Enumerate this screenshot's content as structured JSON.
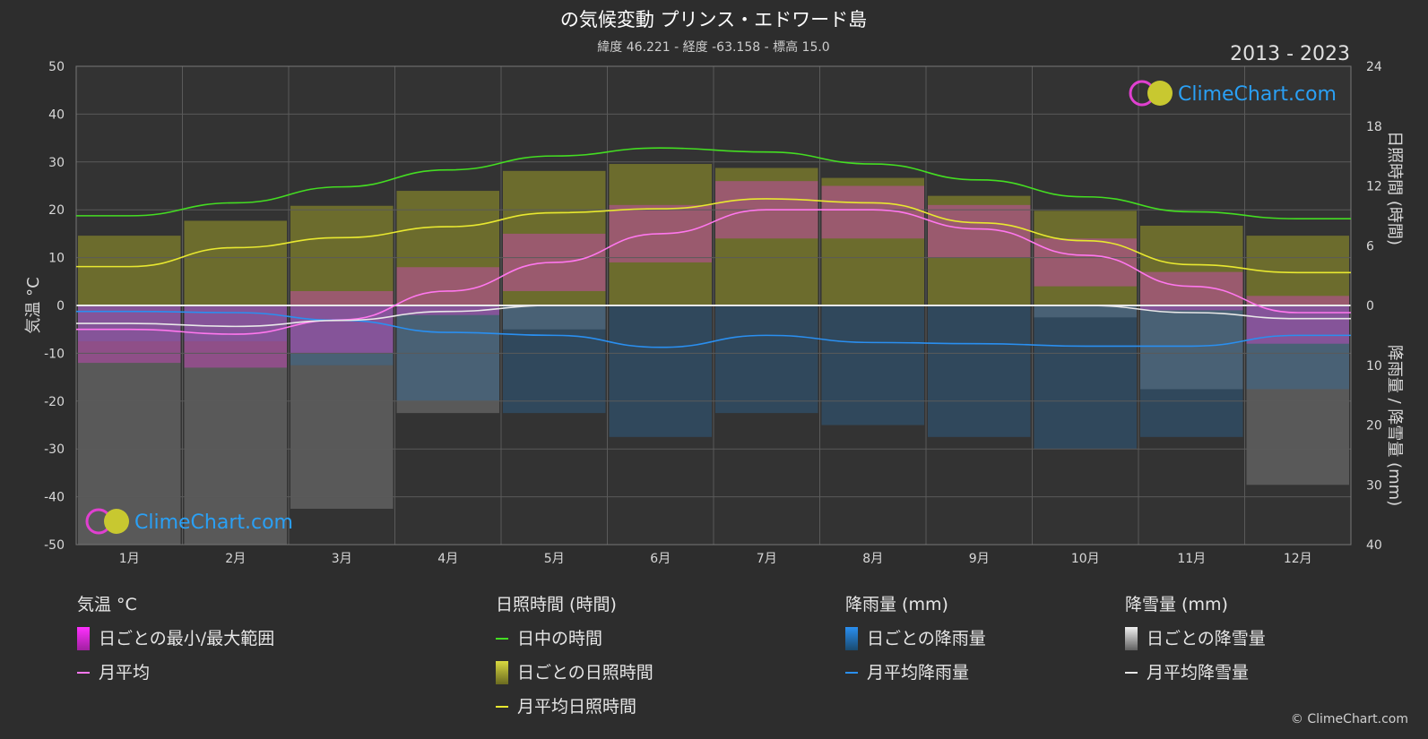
{
  "header": {
    "title": "の気候変動 プリンス・エドワード島",
    "subtitle": "緯度 46.221 - 経度 -63.158 - 標高 15.0",
    "years": "2013 - 2023"
  },
  "brand": {
    "logo_text": "ClimeChart.com",
    "copyright": "© ClimeChart.com"
  },
  "axes": {
    "left_label": "気温 °C",
    "right_top_label": "日照時間 (時間)",
    "right_bottom_label": "降雨量 / 降雪量 (mm)"
  },
  "legend": {
    "temperature": {
      "heading": "気温 °C",
      "range_label": "日ごとの最小/最大範囲",
      "avg_label": "月平均"
    },
    "sunshine": {
      "heading": "日照時間 (時間)",
      "daylight_label": "日中の時間",
      "daily_label": "日ごとの日照時間",
      "avg_label": "月平均日照時間"
    },
    "rain": {
      "heading": "降雨量 (mm)",
      "daily_label": "日ごとの降雨量",
      "avg_label": "月平均降雨量"
    },
    "snow": {
      "heading": "降雪量 (mm)",
      "daily_label": "日ごとの降雪量",
      "avg_label": "月平均降雪量"
    }
  },
  "colors": {
    "background": "#2d2d2d",
    "plot_background": "#333333",
    "daylight": "#44dd22",
    "sunshine_avg": "#e8e830",
    "temp_avg": "#ff77ee",
    "rain_avg": "#2a8ff0",
    "snow_avg": "#e8e8e8",
    "temp_range": "#e040d0",
    "sunshine_bar": "#9a9a28",
    "rain_bar": "#2a6fa8",
    "snow_bar": "#888888",
    "logo_blue": "#2aa0f5"
  },
  "chart_data": {
    "type": "line",
    "months": [
      "1月",
      "2月",
      "3月",
      "4月",
      "5月",
      "6月",
      "7月",
      "8月",
      "9月",
      "10月",
      "11月",
      "12月"
    ],
    "temp_axis": {
      "min": -50,
      "max": 50,
      "ticks": [
        50,
        40,
        30,
        20,
        10,
        0,
        -10,
        -20,
        -30,
        -40,
        -50
      ]
    },
    "sun_axis": {
      "min": 0,
      "max": 24,
      "ticks": [
        24,
        18,
        12,
        6,
        0
      ]
    },
    "precip_axis": {
      "min": 0,
      "max": 40,
      "ticks": [
        0,
        10,
        20,
        30,
        40
      ]
    },
    "series": [
      {
        "name": "日中の時間",
        "unit": "h",
        "values": [
          9.0,
          10.3,
          11.9,
          13.6,
          15.0,
          15.8,
          15.4,
          14.2,
          12.6,
          10.9,
          9.4,
          8.7
        ]
      },
      {
        "name": "月平均日照時間",
        "unit": "h",
        "values": [
          3.9,
          5.8,
          6.8,
          7.9,
          9.3,
          9.7,
          10.7,
          10.3,
          8.3,
          6.5,
          4.1,
          3.3
        ]
      },
      {
        "name": "月平均",
        "unit": "°C",
        "values": [
          -5.0,
          -6.0,
          -3.0,
          3.0,
          9.0,
          15.0,
          20.0,
          20.0,
          16.0,
          10.5,
          4.0,
          -1.5
        ]
      },
      {
        "name": "月平均降雨量",
        "unit": "mm",
        "values": [
          1.0,
          1.2,
          2.5,
          4.5,
          5.0,
          7.0,
          5.0,
          6.2,
          6.4,
          6.8,
          6.8,
          5.0
        ]
      },
      {
        "name": "月平均降雪量",
        "unit": "mm",
        "values": [
          3.0,
          3.5,
          2.5,
          1.0,
          0.0,
          0.0,
          0.0,
          0.0,
          0.0,
          0.0,
          1.2,
          2.2
        ]
      }
    ],
    "daily_temp_range": {
      "min": [
        -12,
        -13,
        -10,
        -2,
        3,
        9,
        14,
        14,
        10,
        4,
        -1,
        -8
      ],
      "max": [
        0,
        0,
        3,
        8,
        15,
        21,
        26,
        25,
        21,
        14,
        7,
        2
      ]
    },
    "daily_sunshine_max": [
      7.0,
      8.5,
      10.0,
      11.5,
      13.5,
      14.2,
      13.8,
      12.8,
      11.0,
      9.5,
      8.0,
      7.0
    ],
    "daily_rain_max": [
      6,
      6,
      10,
      16,
      18,
      22,
      18,
      20,
      22,
      24,
      22,
      14
    ],
    "daily_snow_max": [
      40,
      40,
      34,
      18,
      4,
      0,
      0,
      0,
      0,
      2,
      14,
      30
    ]
  }
}
